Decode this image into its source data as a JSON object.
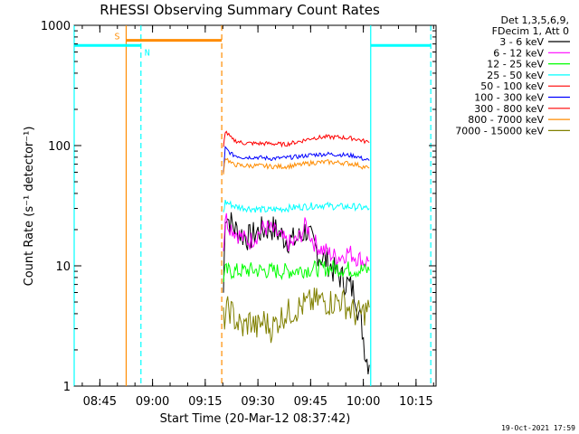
{
  "chart_data": {
    "type": "line",
    "title": "RHESSI Observing Summary Count Rates",
    "xlabel": "Start Time (20-Mar-12 08:37:42)",
    "ylabel": "Count Rate (s⁻¹ detector⁻¹)",
    "yscale": "log",
    "ylim": [
      1,
      1000
    ],
    "xlim_minutes_after_0837": [
      0,
      103
    ],
    "x_ticks": [
      {
        "label": "08:45",
        "minute": 7.3
      },
      {
        "label": "09:00",
        "minute": 22.3
      },
      {
        "label": "09:15",
        "minute": 37.3
      },
      {
        "label": "09:30",
        "minute": 52.3
      },
      {
        "label": "09:45",
        "minute": 67.3
      },
      {
        "label": "10:00",
        "minute": 82.3
      },
      {
        "label": "10:15",
        "minute": 97.3
      }
    ],
    "y_ticks": [
      {
        "label": "1",
        "value": 1
      },
      {
        "label": "10",
        "value": 10
      },
      {
        "label": "100",
        "value": 100
      },
      {
        "label": "1000",
        "value": 1000
      }
    ],
    "legend_header": [
      "Det 1,3,5,6,9,",
      "FDecim 1, Att 0"
    ],
    "series": [
      {
        "name": "3 - 6 keV",
        "color": "#000000",
        "values": [
          [
            42.5,
            6
          ],
          [
            43,
            28
          ],
          [
            44,
            24
          ],
          [
            46,
            20
          ],
          [
            48,
            18
          ],
          [
            50,
            17
          ],
          [
            52,
            19
          ],
          [
            54,
            20
          ],
          [
            56,
            21
          ],
          [
            58,
            19
          ],
          [
            60,
            17
          ],
          [
            62,
            16
          ],
          [
            64,
            17
          ],
          [
            66,
            20
          ],
          [
            68,
            15
          ],
          [
            70,
            12
          ],
          [
            72,
            11
          ],
          [
            74,
            9
          ],
          [
            76,
            8
          ],
          [
            78,
            7
          ],
          [
            80,
            6
          ],
          [
            81,
            4
          ],
          [
            82,
            3
          ],
          [
            83,
            1.8
          ],
          [
            84,
            1.5
          ]
        ]
      },
      {
        "name": "6 - 12 keV",
        "color": "#ff00ff",
        "values": [
          [
            42.5,
            14
          ],
          [
            43,
            26
          ],
          [
            44,
            22
          ],
          [
            46,
            19
          ],
          [
            48,
            17
          ],
          [
            50,
            16
          ],
          [
            52,
            18
          ],
          [
            54,
            21
          ],
          [
            56,
            20
          ],
          [
            58,
            18
          ],
          [
            60,
            16
          ],
          [
            62,
            15
          ],
          [
            64,
            17
          ],
          [
            66,
            22
          ],
          [
            68,
            16
          ],
          [
            70,
            14
          ],
          [
            72,
            13
          ],
          [
            74,
            12
          ],
          [
            76,
            12
          ],
          [
            78,
            13
          ],
          [
            80,
            12
          ],
          [
            82,
            11
          ],
          [
            84,
            11
          ]
        ]
      },
      {
        "name": "12 - 25 keV",
        "color": "#00ff00",
        "values": [
          [
            42.5,
            8
          ],
          [
            43,
            9
          ],
          [
            46,
            9
          ],
          [
            50,
            9.2
          ],
          [
            55,
            9.1
          ],
          [
            60,
            9
          ],
          [
            65,
            9.3
          ],
          [
            70,
            9.5
          ],
          [
            74,
            9.6
          ],
          [
            78,
            9.4
          ],
          [
            82,
            9.2
          ],
          [
            84,
            9.1
          ]
        ]
      },
      {
        "name": "25 - 50 keV",
        "color": "#00ffff",
        "values": [
          [
            42.5,
            28
          ],
          [
            43,
            34
          ],
          [
            46,
            31
          ],
          [
            50,
            30
          ],
          [
            55,
            29
          ],
          [
            60,
            30
          ],
          [
            65,
            31
          ],
          [
            70,
            32
          ],
          [
            75,
            31
          ],
          [
            80,
            31
          ],
          [
            84,
            30
          ]
        ]
      },
      {
        "name": "50 - 100 keV",
        "color": "#ff0000",
        "values": []
      },
      {
        "name": "100 - 300 keV",
        "color": "#0000ff",
        "values": [
          [
            42.5,
            58
          ],
          [
            43,
            95
          ],
          [
            45,
            84
          ],
          [
            48,
            80
          ],
          [
            52,
            80
          ],
          [
            56,
            78
          ],
          [
            60,
            79
          ],
          [
            64,
            81
          ],
          [
            68,
            84
          ],
          [
            72,
            85
          ],
          [
            76,
            84
          ],
          [
            80,
            82
          ],
          [
            82,
            78
          ],
          [
            84,
            75
          ]
        ]
      },
      {
        "name": "300 - 800 keV",
        "color": "#ff0000",
        "values": [
          [
            42.5,
            95
          ],
          [
            43,
            132
          ],
          [
            45,
            112
          ],
          [
            48,
            105
          ],
          [
            52,
            104
          ],
          [
            56,
            104
          ],
          [
            60,
            102
          ],
          [
            64,
            108
          ],
          [
            68,
            116
          ],
          [
            72,
            118
          ],
          [
            76,
            117
          ],
          [
            80,
            114
          ],
          [
            82,
            110
          ],
          [
            84,
            106
          ]
        ]
      },
      {
        "name": "800 - 7000 keV",
        "color": "#ff8c00",
        "values": [
          [
            42.5,
            60
          ],
          [
            43,
            80
          ],
          [
            45,
            70
          ],
          [
            48,
            68
          ],
          [
            52,
            68
          ],
          [
            56,
            67
          ],
          [
            60,
            67
          ],
          [
            64,
            69
          ],
          [
            68,
            72
          ],
          [
            72,
            73
          ],
          [
            76,
            72
          ],
          [
            80,
            70
          ],
          [
            82,
            67
          ],
          [
            84,
            65
          ]
        ]
      },
      {
        "name": "7000 - 15000 keV",
        "color": "#808000",
        "values": [
          [
            42.5,
            3.5
          ],
          [
            44,
            4.5
          ],
          [
            46,
            3.5
          ],
          [
            48,
            3
          ],
          [
            50,
            3.5
          ],
          [
            52,
            3
          ],
          [
            54,
            3.5
          ],
          [
            56,
            3
          ],
          [
            58,
            3.5
          ],
          [
            60,
            4
          ],
          [
            62,
            4.2
          ],
          [
            64,
            4.5
          ],
          [
            66,
            4.8
          ],
          [
            68,
            5
          ],
          [
            70,
            5.2
          ],
          [
            72,
            5
          ],
          [
            74,
            5
          ],
          [
            76,
            5.2
          ],
          [
            78,
            4.5
          ],
          [
            80,
            4
          ],
          [
            82,
            4
          ],
          [
            84,
            4.5
          ]
        ]
      }
    ],
    "annotations": [
      {
        "label": "S",
        "color": "#ff8c00",
        "x_start": 14.8,
        "x_end": 42.0,
        "y": 750
      },
      {
        "label": "N",
        "color": "#00ffff",
        "x_start": 0.0,
        "x_end": 19.0,
        "y": 680
      },
      {
        "label": "",
        "color": "#00ffff",
        "x_start": 84.4,
        "x_end": 101.5,
        "y": 680
      }
    ],
    "vlines": [
      {
        "minute": 0.0,
        "color": "#00ffff",
        "style": "solid"
      },
      {
        "minute": 14.8,
        "color": "#ff8c00",
        "style": "solid"
      },
      {
        "minute": 19.0,
        "color": "#00ffff",
        "style": "dashed"
      },
      {
        "minute": 42.0,
        "color": "#ff8c00",
        "style": "dashed"
      },
      {
        "minute": 84.4,
        "color": "#00ffff",
        "style": "solid"
      },
      {
        "minute": 101.5,
        "color": "#00ffff",
        "style": "dashed"
      }
    ]
  },
  "footer_timestamp": "19-Oct-2021 17:59"
}
